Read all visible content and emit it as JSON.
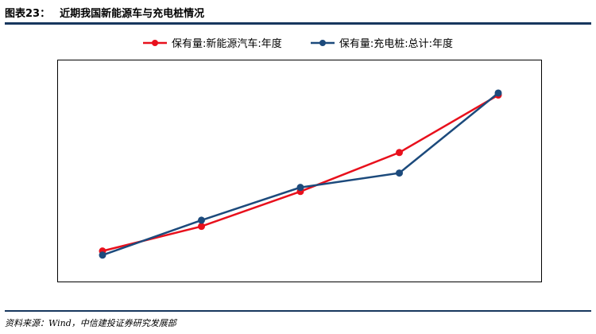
{
  "header": {
    "figure_num": "图表23：",
    "title": "近期我国新能源车与充电桩情况"
  },
  "source": {
    "text": "资料来源：Wind，中信建投证券研究发展部"
  },
  "chart_data": {
    "type": "line",
    "title": "",
    "xlabel": "",
    "ylabel": "",
    "grid": false,
    "legend_position": "top-center",
    "x": [
      1,
      2,
      3,
      4,
      5
    ],
    "ylim": [
      0,
      100
    ],
    "series": [
      {
        "name": "保有量:新能源汽车:年度",
        "color": "#e8101c",
        "values": [
          11,
          23,
          40,
          59,
          87
        ]
      },
      {
        "name": "保有量:充电桩:总计:年度",
        "color": "#1c4a7c",
        "values": [
          9,
          26,
          42,
          49,
          88
        ]
      }
    ]
  }
}
